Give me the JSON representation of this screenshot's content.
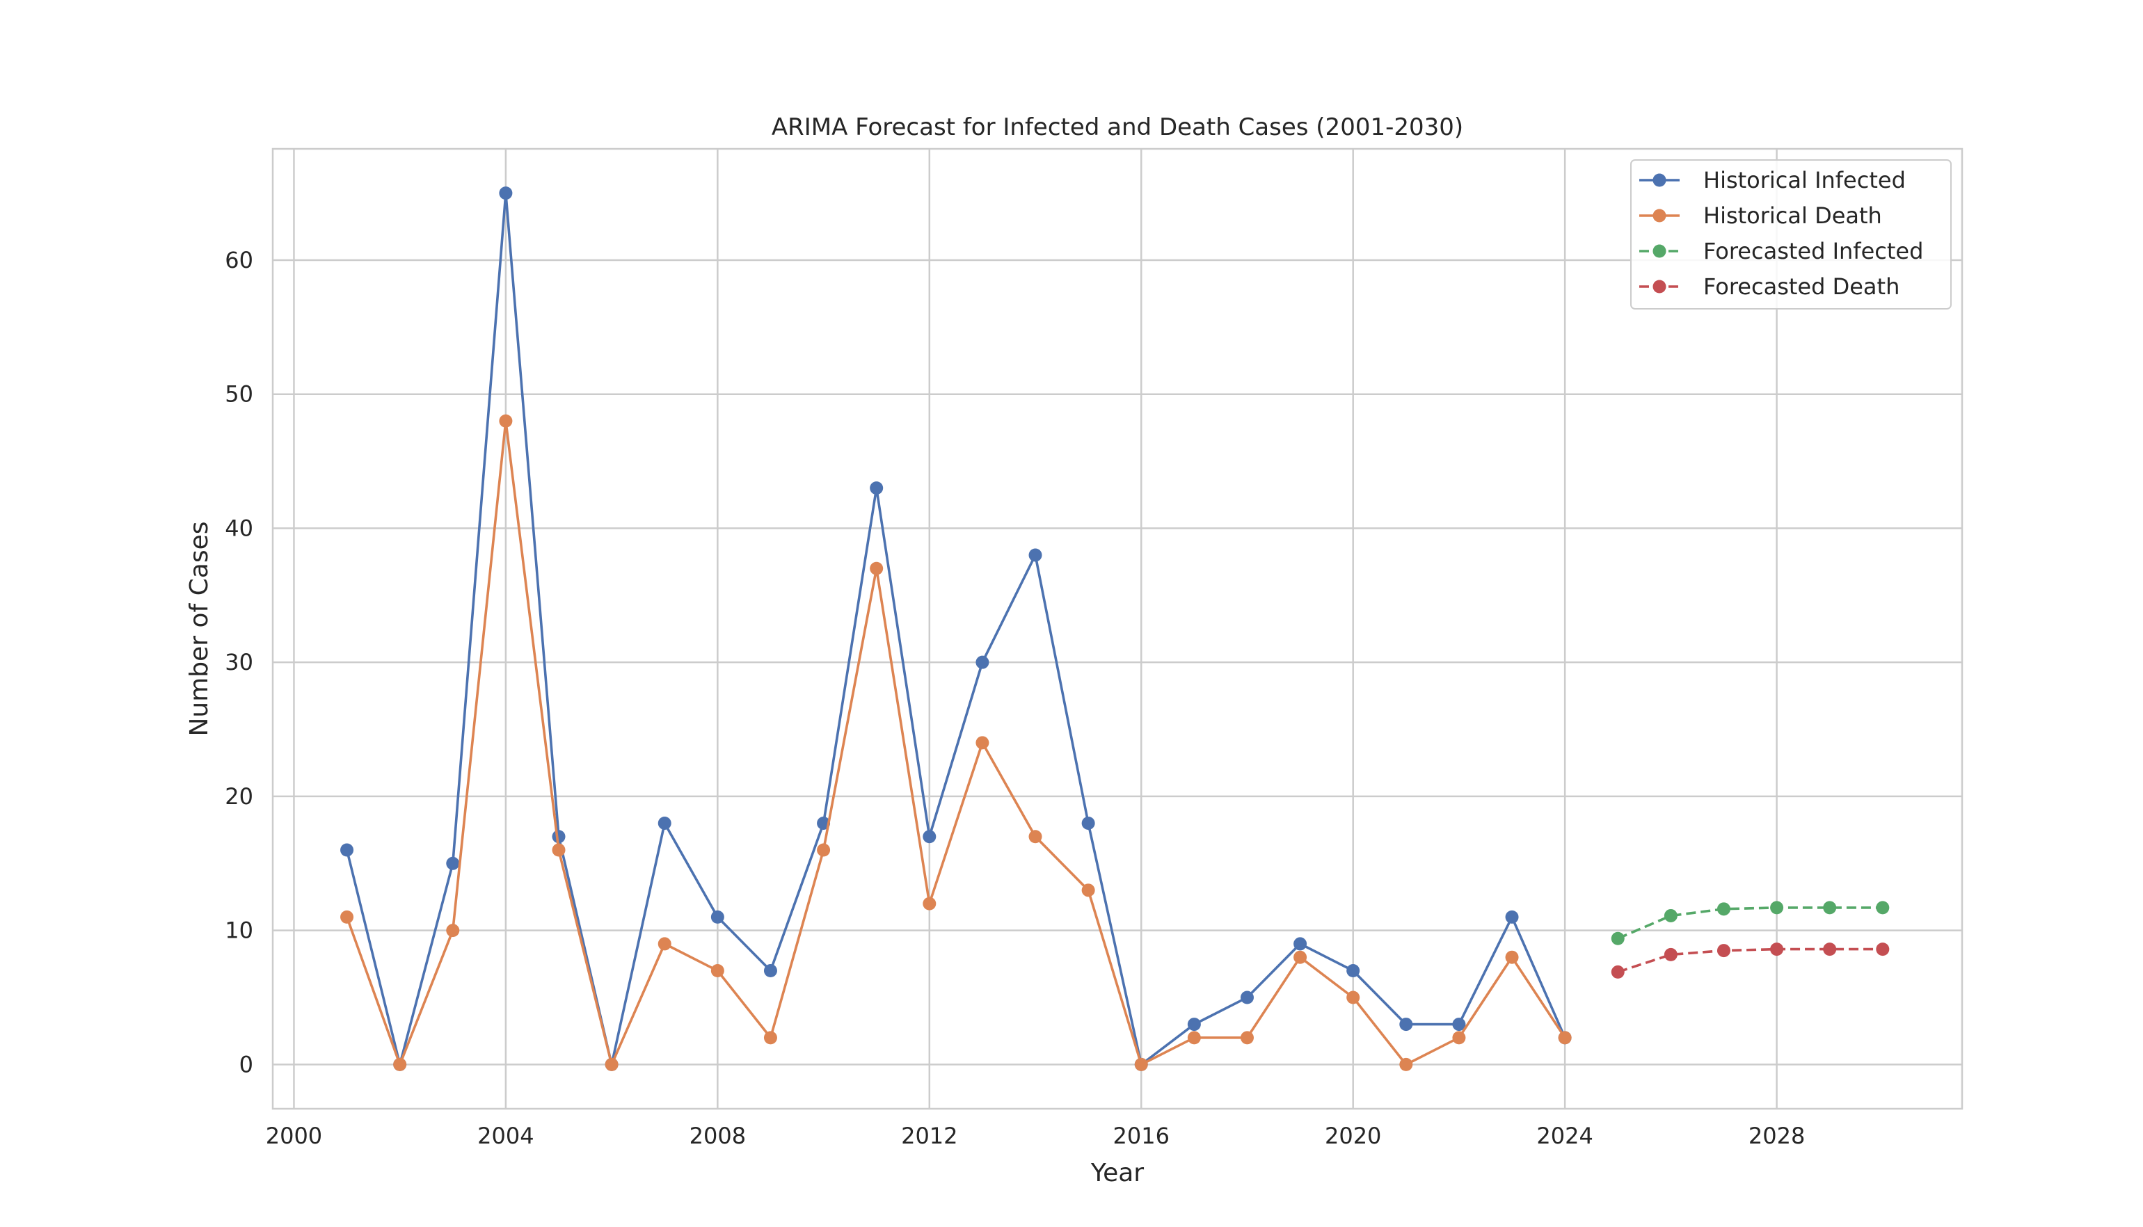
{
  "chart_data": {
    "type": "line",
    "title": "ARIMA Forecast for Infected and Death Cases (2001-2030)",
    "xlabel": "Year",
    "ylabel": "Number of Cases",
    "xlim": [
      1999.6,
      2031.5
    ],
    "ylim": [
      -3.3,
      68.3
    ],
    "x_ticks": [
      2000,
      2004,
      2008,
      2012,
      2016,
      2020,
      2024,
      2028
    ],
    "y_ticks": [
      0,
      10,
      20,
      30,
      40,
      50,
      60
    ],
    "grid": true,
    "legend_position": "top-right",
    "series": [
      {
        "name": "Historical Infected",
        "color": "#4c72b0",
        "linestyle": "solid",
        "marker": "circle",
        "x": [
          2001,
          2002,
          2003,
          2004,
          2005,
          2006,
          2007,
          2008,
          2009,
          2010,
          2011,
          2012,
          2013,
          2014,
          2015,
          2016,
          2017,
          2018,
          2019,
          2020,
          2021,
          2022,
          2023,
          2024
        ],
        "y": [
          16,
          0,
          15,
          65,
          17,
          0,
          18,
          11,
          7,
          18,
          43,
          17,
          30,
          38,
          18,
          0,
          3,
          5,
          9,
          7,
          3,
          3,
          11,
          2
        ]
      },
      {
        "name": "Historical Death",
        "color": "#dd8452",
        "linestyle": "solid",
        "marker": "circle",
        "x": [
          2001,
          2002,
          2003,
          2004,
          2005,
          2006,
          2007,
          2008,
          2009,
          2010,
          2011,
          2012,
          2013,
          2014,
          2015,
          2016,
          2017,
          2018,
          2019,
          2020,
          2021,
          2022,
          2023,
          2024
        ],
        "y": [
          11,
          0,
          10,
          48,
          16,
          0,
          9,
          7,
          2,
          16,
          37,
          12,
          24,
          17,
          13,
          0,
          2,
          2,
          8,
          5,
          0,
          2,
          8,
          2
        ]
      },
      {
        "name": "Forecasted Infected",
        "color": "#55a868",
        "linestyle": "dashed",
        "marker": "circle",
        "x": [
          2025,
          2026,
          2027,
          2028,
          2029,
          2030
        ],
        "y": [
          9.4,
          11.1,
          11.6,
          11.7,
          11.7,
          11.7
        ]
      },
      {
        "name": "Forecasted Death",
        "color": "#c44e52",
        "linestyle": "dashed",
        "marker": "circle",
        "x": [
          2025,
          2026,
          2027,
          2028,
          2029,
          2030
        ],
        "y": [
          6.9,
          8.2,
          8.5,
          8.6,
          8.6,
          8.6
        ]
      }
    ]
  }
}
